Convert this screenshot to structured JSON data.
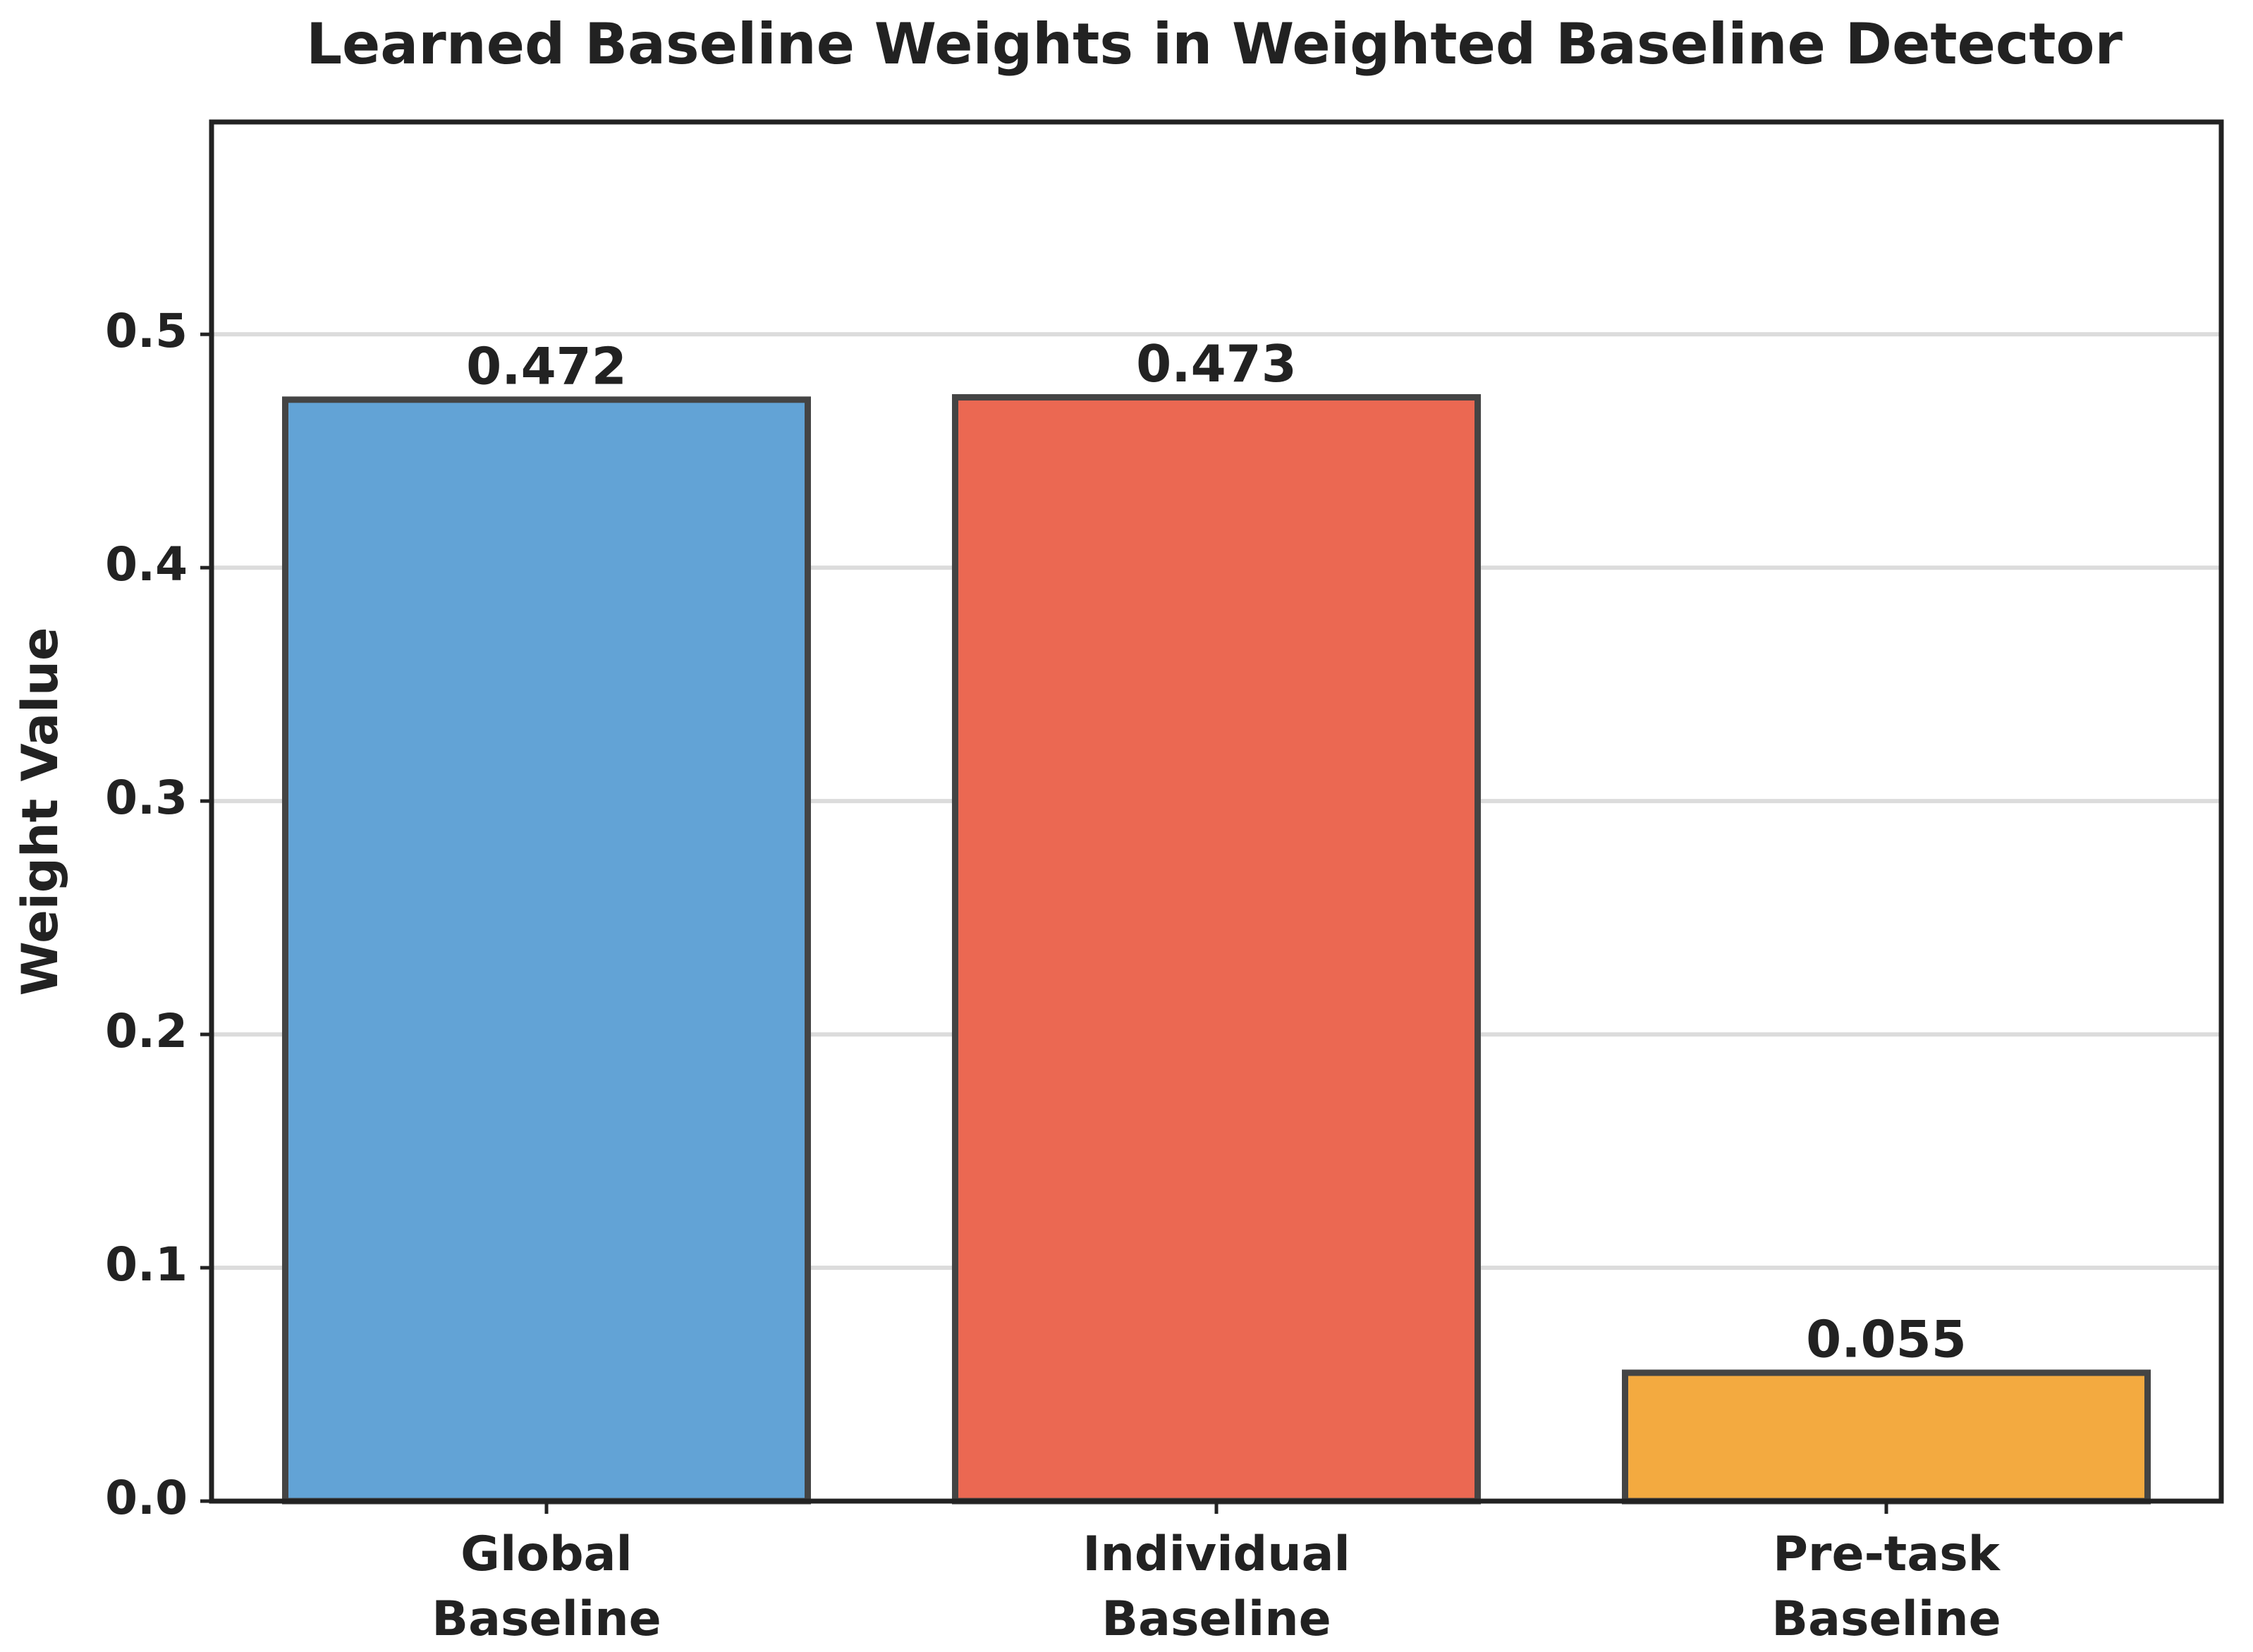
{
  "chart_data": {
    "type": "bar",
    "title": "Learned Baseline Weights in Weighted Baseline Detector",
    "y_label": "Weight Value",
    "categories": [
      "Global\nBaseline",
      "Individual\nBaseline",
      "Pre-task\nBaseline"
    ],
    "values": [
      0.472,
      0.473,
      0.055
    ],
    "colors": [
      "#62a3d6",
      "#eb6852",
      "#f3aa40"
    ],
    "edge_color": "#444444",
    "ylim": [
      0,
      0.591
    ],
    "yticks": [
      {
        "value": 0,
        "label": "0.0"
      },
      0.1,
      0.2,
      0.3,
      0.4,
      0.5
    ],
    "grid": true
  }
}
